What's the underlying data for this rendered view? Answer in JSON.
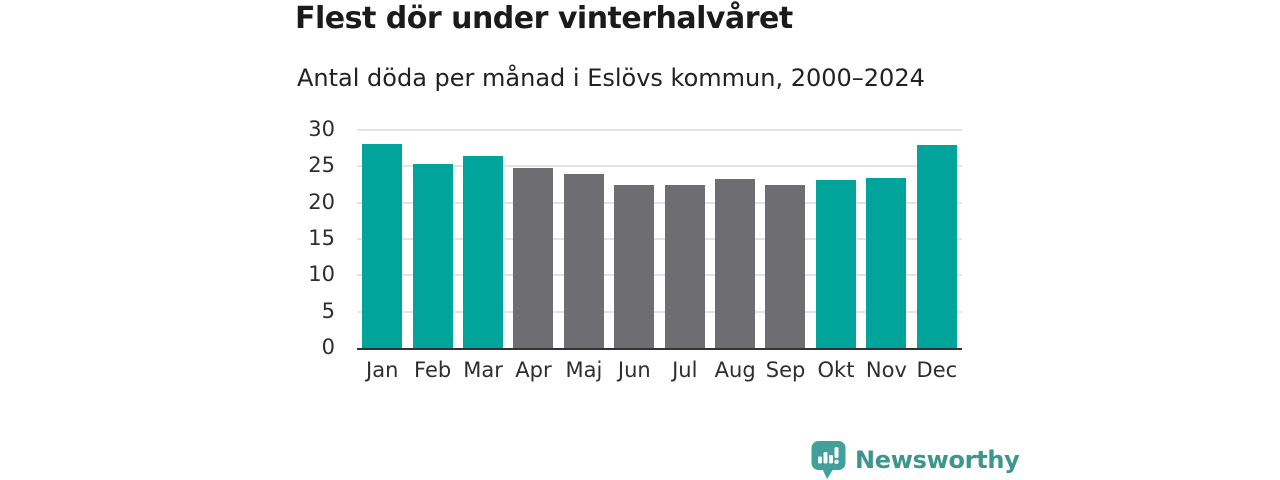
{
  "header": {
    "title": "Flest dör under vinterhalvåret",
    "subtitle": "Antal döda per månad i Eslövs kommun, 2000–2024"
  },
  "chart_data": {
    "type": "bar",
    "title": "Flest dör under vinterhalvåret",
    "subtitle": "Antal döda per månad i Eslövs kommun, 2000–2024",
    "categories": [
      "Jan",
      "Feb",
      "Mar",
      "Apr",
      "Maj",
      "Jun",
      "Jul",
      "Aug",
      "Sep",
      "Okt",
      "Nov",
      "Dec"
    ],
    "values": [
      28.1,
      25.3,
      26.4,
      24.8,
      23.9,
      22.4,
      22.5,
      23.2,
      22.4,
      23.1,
      23.4,
      27.9
    ],
    "bar_color_keys": [
      "winter",
      "winter",
      "winter",
      "summer",
      "summer",
      "summer",
      "summer",
      "summer",
      "summer",
      "winter",
      "winter",
      "winter"
    ],
    "colors": {
      "winter": "#00a49b",
      "summer": "#6e6e72"
    },
    "xlabel": "",
    "ylabel": "",
    "ylim": [
      0,
      30
    ],
    "yticks": [
      0,
      5,
      10,
      15,
      20,
      25,
      30
    ],
    "grid": "horizontal",
    "legend_position": "none"
  },
  "footer": {
    "brand": "Newsworthy",
    "brand_color": "#3e948e",
    "logo_color": "#41a09a",
    "logo_icon": "bar-chart-speech-bubble"
  },
  "colors": {
    "background": "#ffffff",
    "title": "#1b1b1b",
    "subtitle": "#222222",
    "axis_label": "#2e2e2e",
    "gridline": "#e4e4e4",
    "axis_line": "#333333"
  }
}
